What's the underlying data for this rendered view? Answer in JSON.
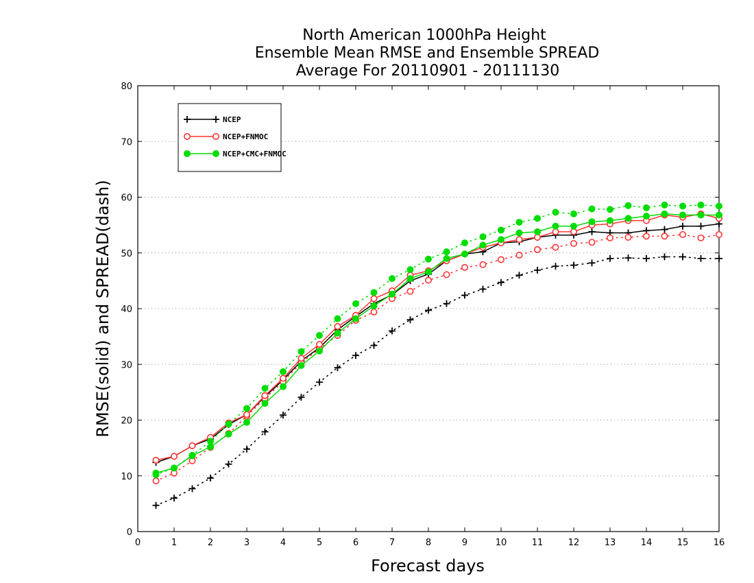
{
  "chart_data": {
    "type": "line",
    "title_lines": [
      "North American 1000hPa Height",
      "Ensemble Mean RMSE and Ensemble SPREAD",
      "Average For 20110901 - 20111130"
    ],
    "xlabel": "Forecast days",
    "ylabel": "RMSE(solid) and SPREAD(dash)",
    "xlim": [
      0,
      16
    ],
    "ylim": [
      0,
      80
    ],
    "x_ticks": [
      "0",
      "1",
      "2",
      "3",
      "4",
      "5",
      "6",
      "7",
      "8",
      "9",
      "10",
      "11",
      "12",
      "13",
      "14",
      "15",
      "16"
    ],
    "y_ticks": [
      "0",
      "10",
      "20",
      "30",
      "40",
      "50",
      "60",
      "70",
      "80"
    ],
    "grid": "horizontal dotted",
    "legend_position": "top-left",
    "x": [
      0.5,
      1,
      1.5,
      2,
      2.5,
      3,
      3.5,
      4,
      4.5,
      5,
      5.5,
      6,
      6.5,
      7,
      7.5,
      8,
      8.5,
      9,
      9.5,
      10,
      10.5,
      11,
      11.5,
      12,
      12.5,
      13,
      13.5,
      14,
      14.5,
      15,
      15.5,
      16
    ],
    "series": [
      {
        "name": "NCEP",
        "color": "#000000",
        "marker": "plus",
        "rmse": [
          12.4,
          13.5,
          15.4,
          16.6,
          19.2,
          21.0,
          24.2,
          27.2,
          30.6,
          33.0,
          36.2,
          38.6,
          40.9,
          42.5,
          45.0,
          46.2,
          48.6,
          49.8,
          50.2,
          51.8,
          52.0,
          52.8,
          53.2,
          53.2,
          53.8,
          53.6,
          53.6,
          54.0,
          54.2,
          54.8,
          54.8,
          55.2
        ],
        "spread": [
          4.7,
          6.0,
          7.7,
          9.6,
          12.1,
          14.8,
          17.9,
          20.9,
          24.1,
          26.8,
          29.4,
          31.6,
          33.4,
          36.0,
          38.0,
          39.7,
          40.9,
          42.4,
          43.5,
          44.7,
          46.0,
          46.9,
          47.6,
          47.8,
          48.2,
          49.0,
          49.1,
          49.0,
          49.3,
          49.3,
          49.0,
          49.0
        ]
      },
      {
        "name": "NCEP+FNMOC",
        "color": "#ff3333",
        "marker": "open-circle",
        "rmse": [
          12.8,
          13.5,
          15.4,
          16.9,
          19.5,
          21.0,
          24.4,
          27.5,
          31.1,
          33.6,
          36.8,
          38.8,
          41.8,
          43.2,
          46.0,
          46.8,
          48.6,
          49.8,
          51.0,
          51.8,
          52.4,
          52.8,
          53.8,
          53.8,
          55.0,
          55.2,
          55.8,
          55.8,
          56.8,
          56.4,
          57.0,
          56.2
        ],
        "spread": [
          9.1,
          10.5,
          12.7,
          15.1,
          17.6,
          20.7,
          23.9,
          26.9,
          30.3,
          32.8,
          35.2,
          37.9,
          39.4,
          41.8,
          43.1,
          45.1,
          46.1,
          47.4,
          47.9,
          48.8,
          49.6,
          50.6,
          51.0,
          51.7,
          51.9,
          52.7,
          52.8,
          53.0,
          53.0,
          53.3,
          52.7,
          53.3
        ]
      },
      {
        "name": "NCEP+CMC+FNMOC",
        "color": "#00dd00",
        "marker": "filled-circle",
        "rmse": [
          10.5,
          11.4,
          13.6,
          15.2,
          17.5,
          19.6,
          23.0,
          26.0,
          29.8,
          32.4,
          35.6,
          38.2,
          40.5,
          42.6,
          45.4,
          46.6,
          49.0,
          49.8,
          51.4,
          52.4,
          53.6,
          53.8,
          54.8,
          54.8,
          55.6,
          55.8,
          56.2,
          56.6,
          57.0,
          56.8,
          56.8,
          56.8
        ],
        "spread": [
          10.2,
          11.4,
          13.7,
          16.2,
          19.3,
          22.1,
          25.7,
          28.7,
          32.3,
          35.2,
          38.2,
          40.9,
          42.9,
          45.4,
          47.0,
          48.9,
          50.2,
          51.8,
          52.9,
          54.1,
          55.5,
          56.2,
          57.3,
          57.0,
          57.9,
          57.8,
          58.5,
          58.1,
          58.6,
          58.4,
          58.6,
          58.4
        ]
      }
    ]
  }
}
